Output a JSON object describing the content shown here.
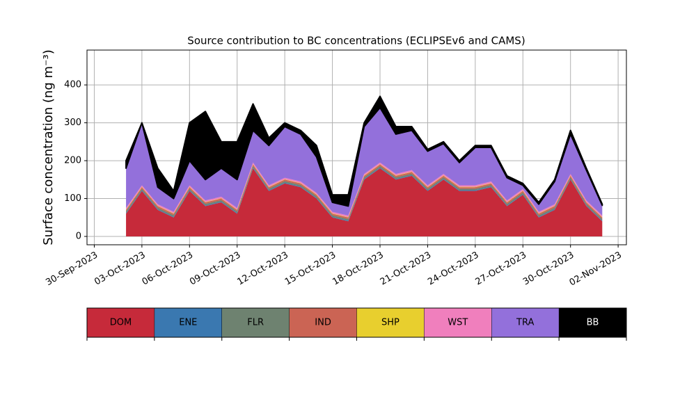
{
  "chart_data": {
    "type": "stacked_area",
    "title": "Source contribution to BC concentrations (ECLIPSEv6 and CAMS)",
    "y_label": "Surface concentration (ng m⁻³)",
    "x": [
      "2023-10-02",
      "2023-10-03",
      "2023-10-04",
      "2023-10-05",
      "2023-10-06",
      "2023-10-07",
      "2023-10-08",
      "2023-10-09",
      "2023-10-10",
      "2023-10-11",
      "2023-10-12",
      "2023-10-13",
      "2023-10-14",
      "2023-10-15",
      "2023-10-16",
      "2023-10-17",
      "2023-10-18",
      "2023-10-19",
      "2023-10-20",
      "2023-10-21",
      "2023-10-22",
      "2023-10-23",
      "2023-10-24",
      "2023-10-25",
      "2023-10-26",
      "2023-10-27",
      "2023-10-28",
      "2023-10-29",
      "2023-10-30",
      "2023-10-31",
      "2023-11-01"
    ],
    "series": [
      {
        "name": "DOM",
        "color": "#c62a3a",
        "values": [
          60,
          120,
          70,
          50,
          120,
          80,
          90,
          60,
          180,
          120,
          140,
          130,
          100,
          50,
          40,
          150,
          180,
          150,
          160,
          120,
          150,
          120,
          120,
          130,
          80,
          110,
          50,
          70,
          150,
          80,
          40
        ]
      },
      {
        "name": "ENE",
        "color": "#3a78b0",
        "values": [
          2,
          2,
          2,
          2,
          2,
          2,
          2,
          2,
          2,
          2,
          2,
          2,
          2,
          2,
          2,
          2,
          2,
          2,
          2,
          2,
          2,
          2,
          2,
          2,
          2,
          2,
          2,
          2,
          2,
          2,
          2
        ]
      },
      {
        "name": "FLR",
        "color": "#6e8270",
        "values": [
          4,
          4,
          4,
          4,
          4,
          4,
          4,
          4,
          4,
          4,
          4,
          4,
          4,
          4,
          4,
          4,
          4,
          4,
          4,
          4,
          4,
          4,
          4,
          4,
          4,
          4,
          4,
          4,
          4,
          4,
          4
        ]
      },
      {
        "name": "IND",
        "color": "#cb6454",
        "values": [
          4,
          4,
          4,
          4,
          4,
          4,
          4,
          4,
          4,
          4,
          4,
          4,
          4,
          4,
          4,
          4,
          4,
          4,
          4,
          4,
          4,
          4,
          4,
          4,
          4,
          4,
          4,
          4,
          4,
          4,
          4
        ]
      },
      {
        "name": "SHP",
        "color": "#e8cf2e",
        "values": [
          1,
          1,
          1,
          1,
          1,
          1,
          1,
          1,
          1,
          1,
          1,
          1,
          1,
          1,
          1,
          1,
          1,
          1,
          1,
          1,
          1,
          1,
          1,
          1,
          1,
          1,
          1,
          1,
          1,
          1,
          1
        ]
      },
      {
        "name": "WST",
        "color": "#f07fbd",
        "values": [
          4,
          4,
          4,
          4,
          4,
          4,
          4,
          4,
          4,
          4,
          4,
          4,
          4,
          4,
          4,
          4,
          4,
          4,
          4,
          4,
          4,
          4,
          4,
          4,
          4,
          4,
          4,
          4,
          4,
          4,
          4
        ]
      },
      {
        "name": "TRA",
        "color": "#9370db",
        "values": [
          105,
          165,
          45,
          35,
          65,
          55,
          75,
          75,
          85,
          105,
          135,
          125,
          95,
          25,
          25,
          125,
          145,
          105,
          105,
          90,
          80,
          60,
          100,
          90,
          60,
          10,
          20,
          60,
          105,
          80,
          27
        ]
      },
      {
        "name": "BB",
        "color": "#000000",
        "values": [
          20,
          0,
          50,
          20,
          100,
          180,
          70,
          100,
          70,
          20,
          10,
          10,
          30,
          20,
          30,
          10,
          30,
          20,
          10,
          5,
          5,
          5,
          5,
          5,
          5,
          5,
          5,
          5,
          10,
          5,
          3
        ]
      }
    ],
    "xlim": [
      "2023-09-29T13:00",
      "2023-11-02T12:30"
    ],
    "xticks": [
      {
        "value": "2023-09-30",
        "label": "30-Sep-2023"
      },
      {
        "value": "2023-10-03",
        "label": "03-Oct-2023"
      },
      {
        "value": "2023-10-06",
        "label": "06-Oct-2023"
      },
      {
        "value": "2023-10-09",
        "label": "09-Oct-2023"
      },
      {
        "value": "2023-10-12",
        "label": "12-Oct-2023"
      },
      {
        "value": "2023-10-15",
        "label": "15-Oct-2023"
      },
      {
        "value": "2023-10-18",
        "label": "18-Oct-2023"
      },
      {
        "value": "2023-10-21",
        "label": "21-Oct-2023"
      },
      {
        "value": "2023-10-24",
        "label": "24-Oct-2023"
      },
      {
        "value": "2023-10-27",
        "label": "27-Oct-2023"
      },
      {
        "value": "2023-10-30",
        "label": "30-Oct-2023"
      },
      {
        "value": "2023-11-02",
        "label": "02-Nov-2023"
      }
    ],
    "ylim": [
      -22,
      492
    ],
    "yticks": [
      0,
      100,
      200,
      300,
      400
    ],
    "grid": true
  }
}
